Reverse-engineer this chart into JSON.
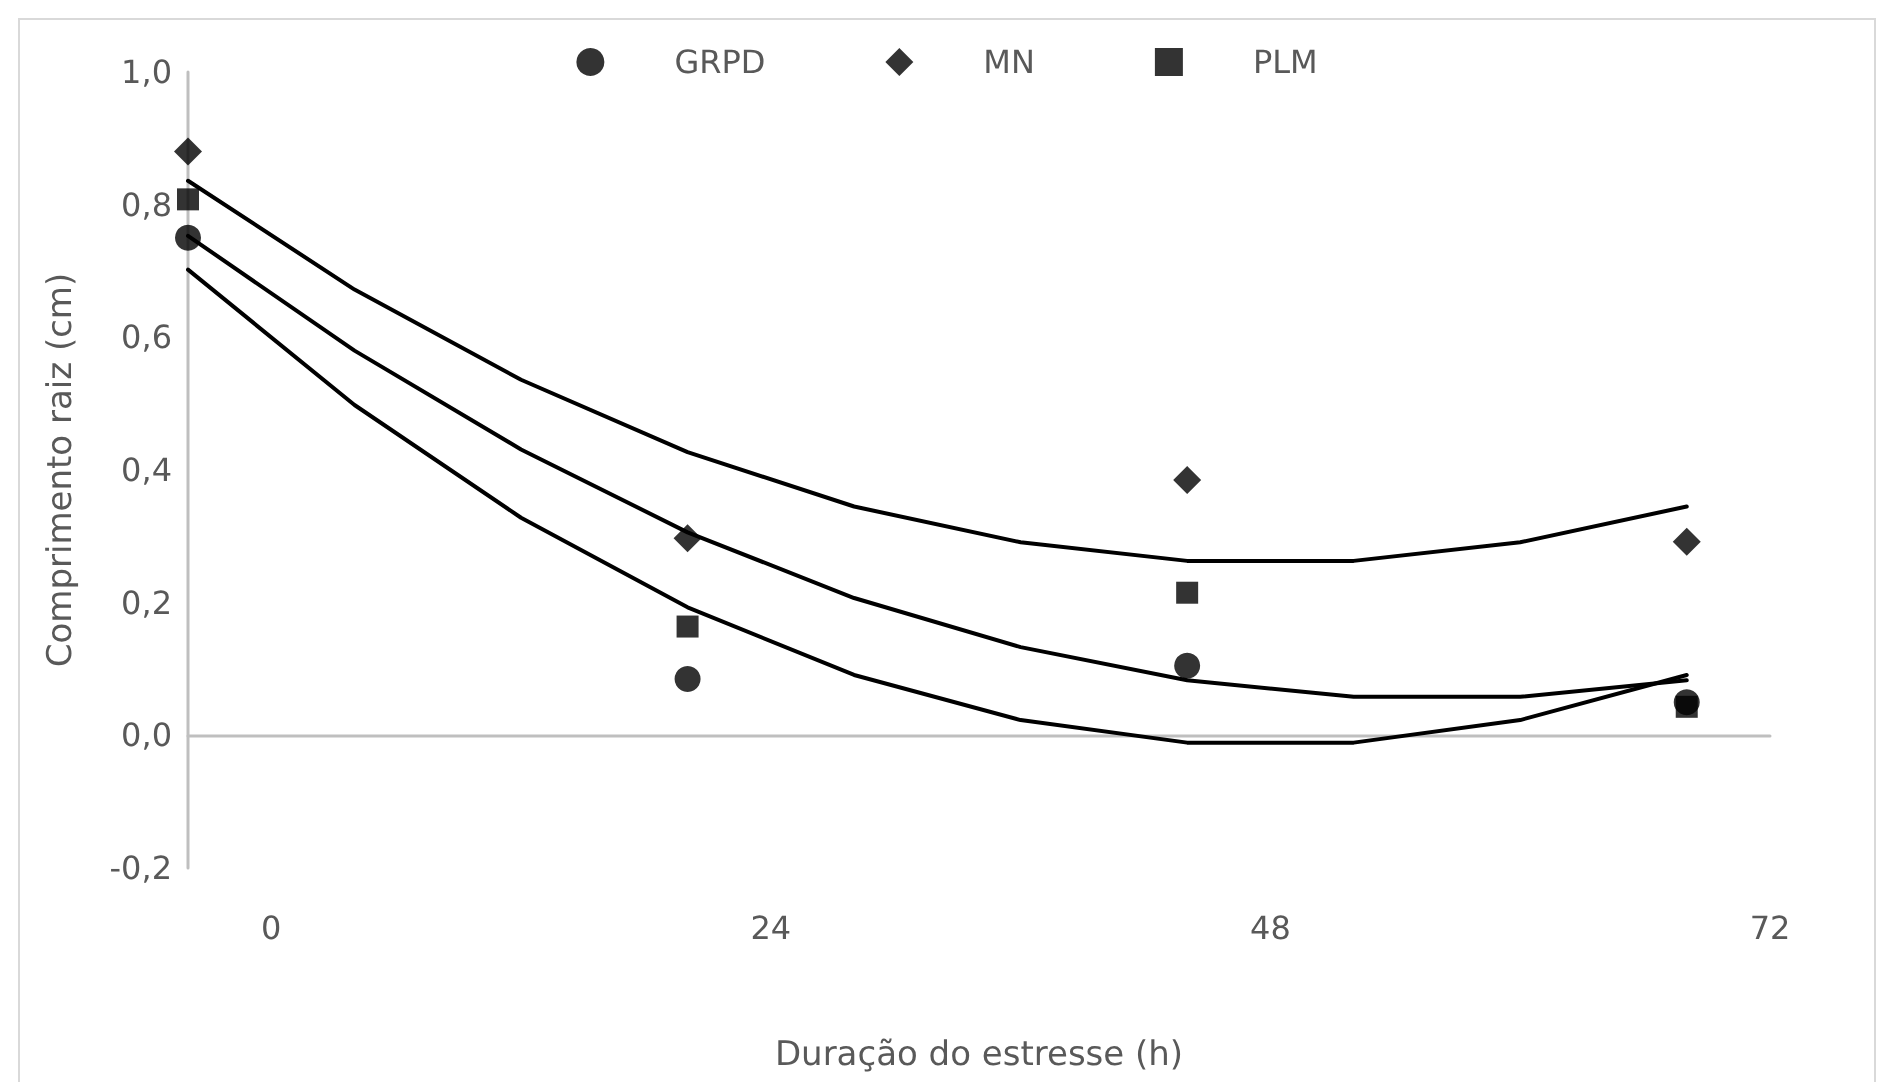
{
  "chart_data": {
    "type": "scatter",
    "xlabel": "Duração do estresse (h)",
    "ylabel": "Comprimento raiz (cm)",
    "x": [
      -4,
      20,
      44,
      68
    ],
    "series": [
      {
        "name": "GRPD",
        "color": "#000000",
        "marker": "circle",
        "values": [
          0.75,
          0.085,
          0.105,
          0.05
        ]
      },
      {
        "name": "MN",
        "color": "#000000",
        "marker": "diamond",
        "values": [
          0.88,
          0.297,
          0.385,
          0.292
        ]
      },
      {
        "name": "PLM",
        "color": "#000000",
        "marker": "square",
        "values": [
          0.808,
          0.164,
          0.215,
          0.043
        ]
      },
      {
        "type": "line",
        "color": "#000000",
        "marker": "none",
        "x": [
          -4,
          4,
          12,
          20,
          28,
          36,
          44,
          52,
          60,
          68
        ],
        "values": [
          0.836,
          0.672,
          0.536,
          0.427,
          0.345,
          0.291,
          0.263,
          0.263,
          0.291,
          0.345
        ]
      },
      {
        "type": "line",
        "color": "#000000",
        "marker": "none",
        "x": [
          -4,
          4,
          12,
          20,
          28,
          36,
          44,
          52,
          60,
          68
        ],
        "values": [
          0.753,
          0.58,
          0.431,
          0.306,
          0.207,
          0.133,
          0.083,
          0.058,
          0.058,
          0.083
        ]
      },
      {
        "type": "line",
        "color": "#000000",
        "marker": "none",
        "x": [
          -4,
          4,
          12,
          20,
          28,
          36,
          44,
          52,
          60,
          68
        ],
        "values": [
          0.702,
          0.498,
          0.328,
          0.193,
          0.091,
          0.023,
          -0.011,
          -0.011,
          0.023,
          0.091
        ]
      }
    ],
    "xlim": [
      -4,
      72
    ],
    "xticks": [
      0,
      24,
      48,
      72
    ],
    "ylim": [
      -0.2,
      1.0
    ],
    "yticks": [
      {
        "value": -0.2,
        "label": "-0,2"
      },
      {
        "value": 0,
        "label": "0,0"
      },
      {
        "value": 0.2,
        "label": "0,2"
      },
      {
        "value": 0.4,
        "label": "0,4"
      },
      {
        "value": 0.6,
        "label": "0,6"
      },
      {
        "value": 0.8,
        "label": "0,8"
      },
      {
        "value": 1.0,
        "label": "1,0"
      }
    ],
    "legend": "top",
    "line_style": "solid"
  }
}
